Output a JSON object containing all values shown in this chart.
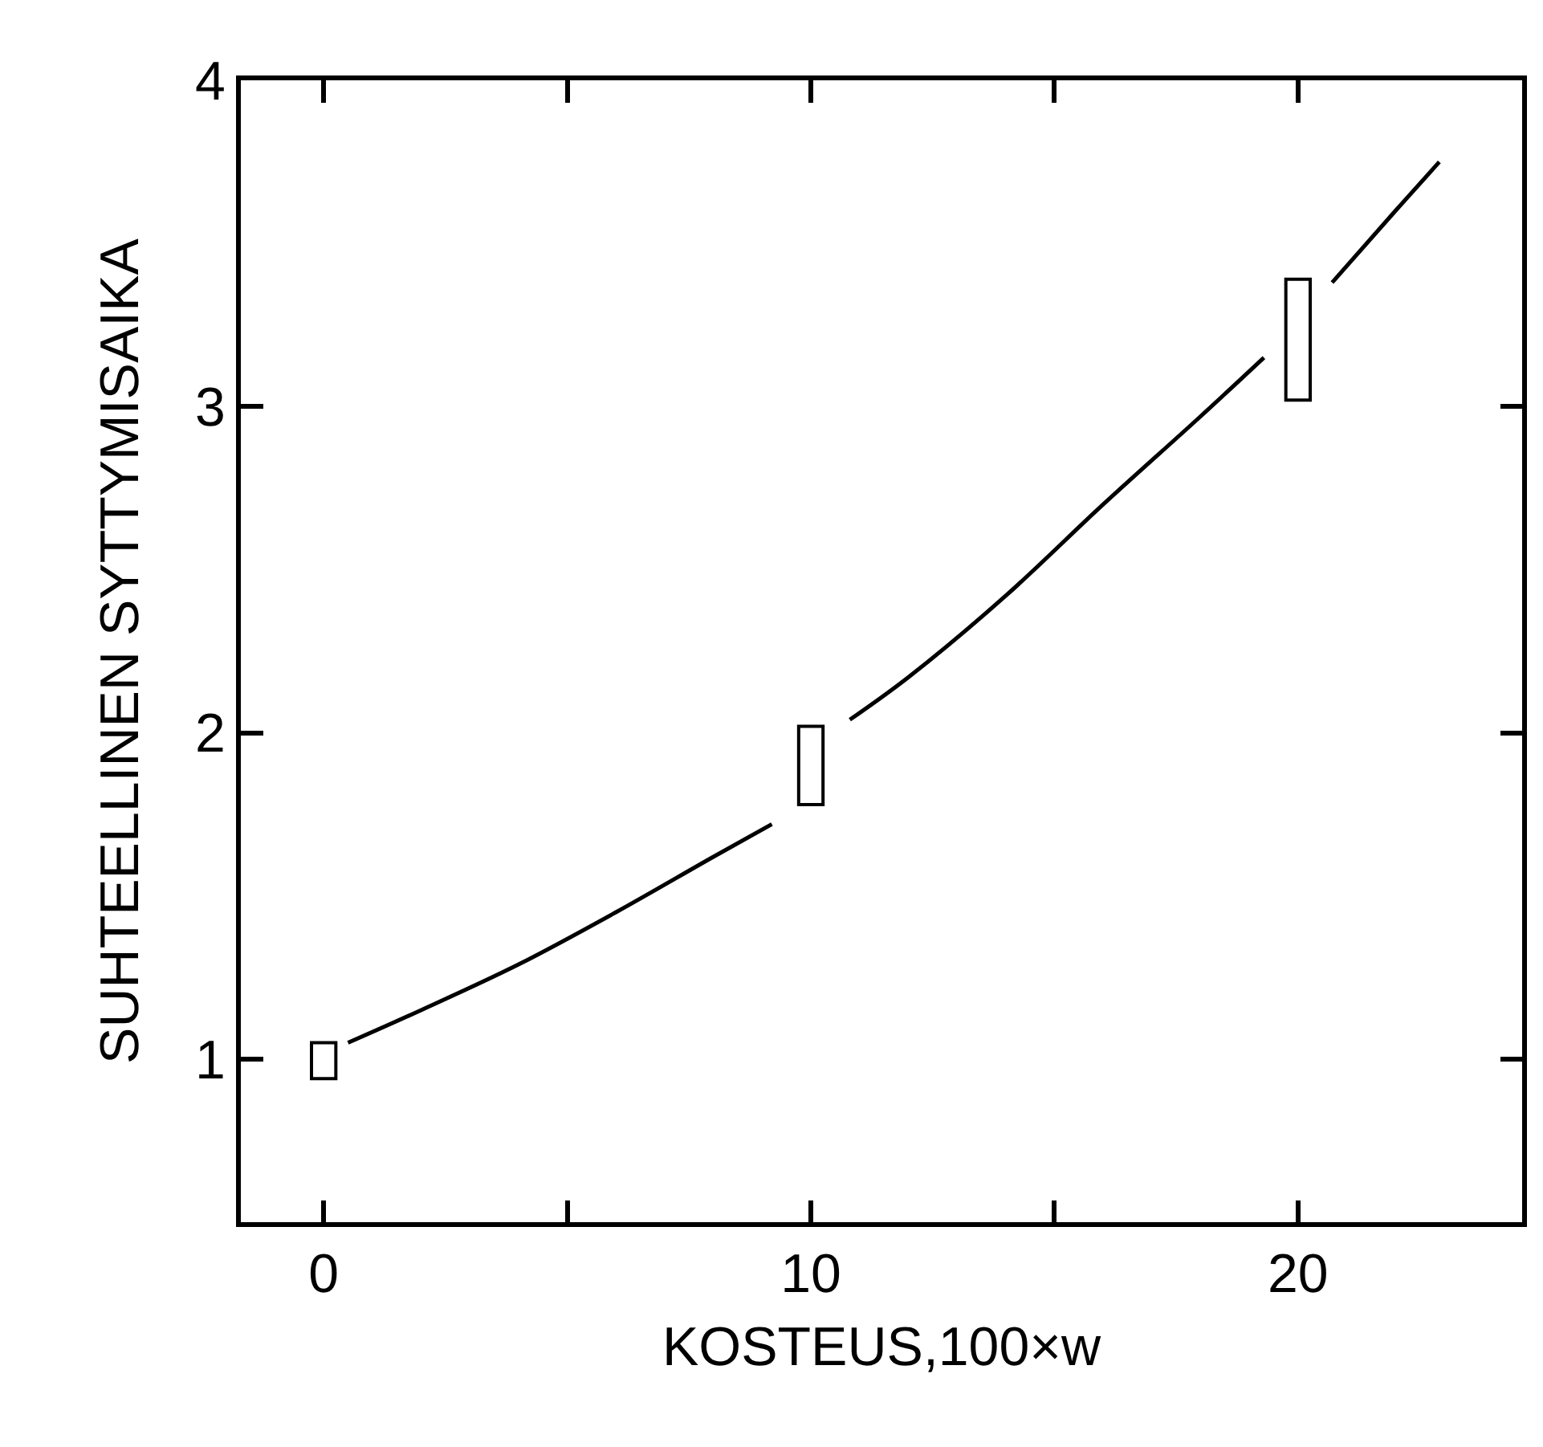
{
  "chart_data": {
    "type": "line",
    "xlabel": "KOSTEUS,100×w",
    "ylabel": "SUHTEELLINEN SYTTYMISAIKA",
    "xlim": [
      -1.7,
      24.6
    ],
    "ylim": [
      0.5,
      4.0
    ],
    "xticks": [
      0,
      {
        "value": 5,
        "label": null
      },
      10,
      {
        "value": 15,
        "label": null
      },
      20
    ],
    "yticks": [
      1,
      2,
      3,
      4
    ],
    "marker": "none",
    "line_style": "solid",
    "series": [
      {
        "color": "#000000",
        "x": [
          0.5,
          2,
          4,
          6,
          8,
          9.2,
          null,
          10.8,
          12,
          14,
          16,
          18,
          19.3,
          null,
          20.7,
          22,
          22.9
        ],
        "values": [
          1.05,
          1.15,
          1.29,
          1.45,
          1.62,
          1.72,
          null,
          2.04,
          2.17,
          2.42,
          2.7,
          2.97,
          3.15,
          null,
          3.38,
          3.6,
          3.75
        ]
      },
      {
        "type": "bar",
        "color": "#000000",
        "x": [
          0,
          10,
          20
        ],
        "base": [
          0.94,
          1.78,
          3.02
        ],
        "values": [
          0.11,
          0.24,
          0.37
        ]
      }
    ]
  }
}
